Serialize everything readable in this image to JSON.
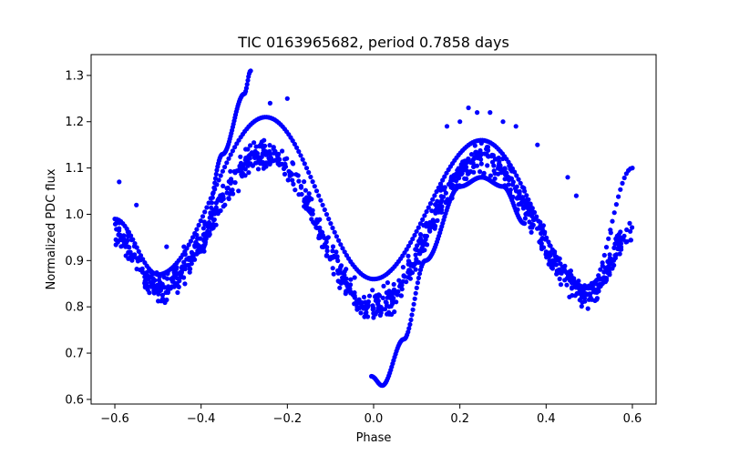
{
  "chart_data": {
    "type": "scatter",
    "title": "TIC 0163965682, period 0.7858 days",
    "xlabel": "Phase",
    "ylabel": "Normalized PDC flux",
    "xlim": [
      -0.655,
      0.655
    ],
    "ylim": [
      0.59,
      1.345
    ],
    "xticks": [
      -0.6,
      -0.4,
      -0.2,
      0.0,
      0.2,
      0.4,
      0.6
    ],
    "xtick_labels": [
      "−0.6",
      "−0.4",
      "−0.2",
      "0.0",
      "0.2",
      "0.4",
      "0.6"
    ],
    "yticks": [
      0.6,
      0.7,
      0.8,
      0.9,
      1.0,
      1.1,
      1.2,
      1.3
    ],
    "ytick_labels": [
      "0.6",
      "0.7",
      "0.8",
      "0.9",
      "1.0",
      "1.1",
      "1.2",
      "1.3"
    ],
    "grid": false,
    "marker_color": "#0000ff",
    "main_band": {
      "phase": [
        -0.6,
        -0.5,
        -0.25,
        0.0,
        0.25,
        0.5,
        0.6
      ],
      "flux": [
        0.96,
        0.84,
        1.13,
        0.8,
        1.12,
        0.83,
        0.96
      ],
      "spread": 0.045
    },
    "inner_track": {
      "phase": [
        -0.6,
        -0.5,
        -0.25,
        0.0,
        0.25,
        0.5,
        0.6
      ],
      "flux": [
        0.99,
        0.87,
        1.21,
        0.86,
        1.16,
        0.84,
        1.1
      ]
    },
    "outlier_track_left": {
      "phase": [
        -0.4,
        -0.35,
        -0.3,
        -0.285
      ],
      "flux": [
        0.92,
        1.13,
        1.26,
        1.31
      ]
    },
    "outlier_track_right": {
      "phase": [
        -0.005,
        0.02,
        0.07,
        0.12,
        0.2,
        0.25,
        0.3,
        0.35
      ],
      "flux": [
        0.65,
        0.63,
        0.73,
        0.9,
        1.06,
        1.08,
        1.06,
        0.98
      ]
    },
    "scattered_points": {
      "phase": [
        -0.59,
        -0.55,
        -0.48,
        -0.44,
        -0.24,
        -0.2,
        0.17,
        0.2,
        0.22,
        0.24,
        0.27,
        0.3,
        0.33,
        0.38,
        0.45,
        0.47,
        0.55
      ],
      "flux": [
        1.07,
        1.02,
        0.93,
        0.93,
        1.24,
        1.25,
        1.19,
        1.2,
        1.23,
        1.22,
        1.22,
        1.2,
        1.19,
        1.15,
        1.08,
        1.04,
        0.96
      ]
    }
  }
}
